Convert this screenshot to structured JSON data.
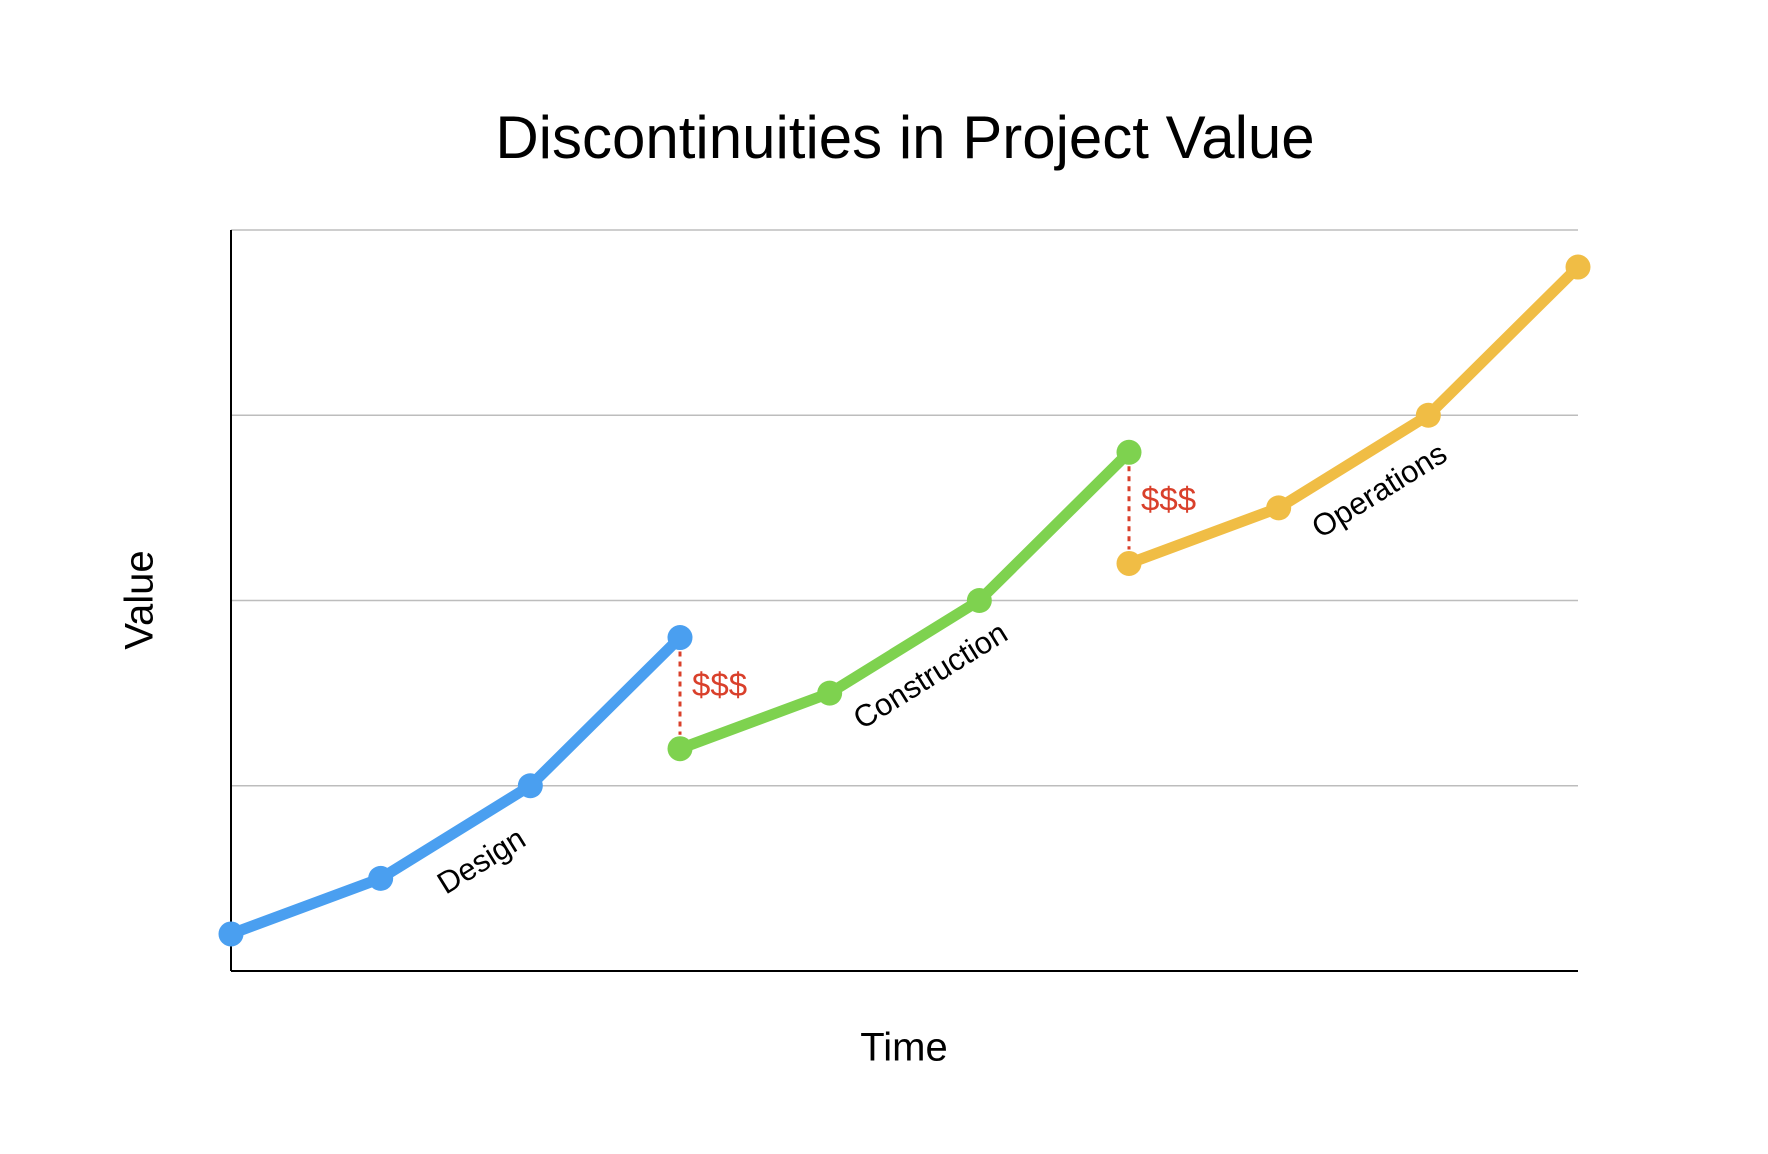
{
  "chart_data": {
    "type": "line",
    "title": "Discontinuities in Project Value",
    "x_label": "Time",
    "y_label": "Value",
    "xlim": [
      0,
      9
    ],
    "ylim": [
      0,
      4
    ],
    "yticks": [
      1,
      2,
      3,
      4
    ],
    "grid": true,
    "series": [
      {
        "name": "Design",
        "color": "#4a9ff0",
        "x": [
          0,
          1,
          2,
          3
        ],
        "values": [
          0.2,
          0.5,
          1.0,
          1.8
        ]
      },
      {
        "name": "Construction",
        "color": "#7ed24f",
        "x": [
          3,
          4,
          5,
          6
        ],
        "values": [
          1.2,
          1.5,
          2.0,
          2.8
        ]
      },
      {
        "name": "Operations",
        "color": "#f0bd45",
        "x": [
          6,
          7,
          8,
          9
        ],
        "values": [
          2.2,
          2.5,
          3.0,
          3.8
        ]
      }
    ],
    "gap_annotations": [
      {
        "text": "$$$",
        "color": "#d9402b"
      },
      {
        "text": "$$$",
        "color": "#d9402b"
      }
    ]
  }
}
